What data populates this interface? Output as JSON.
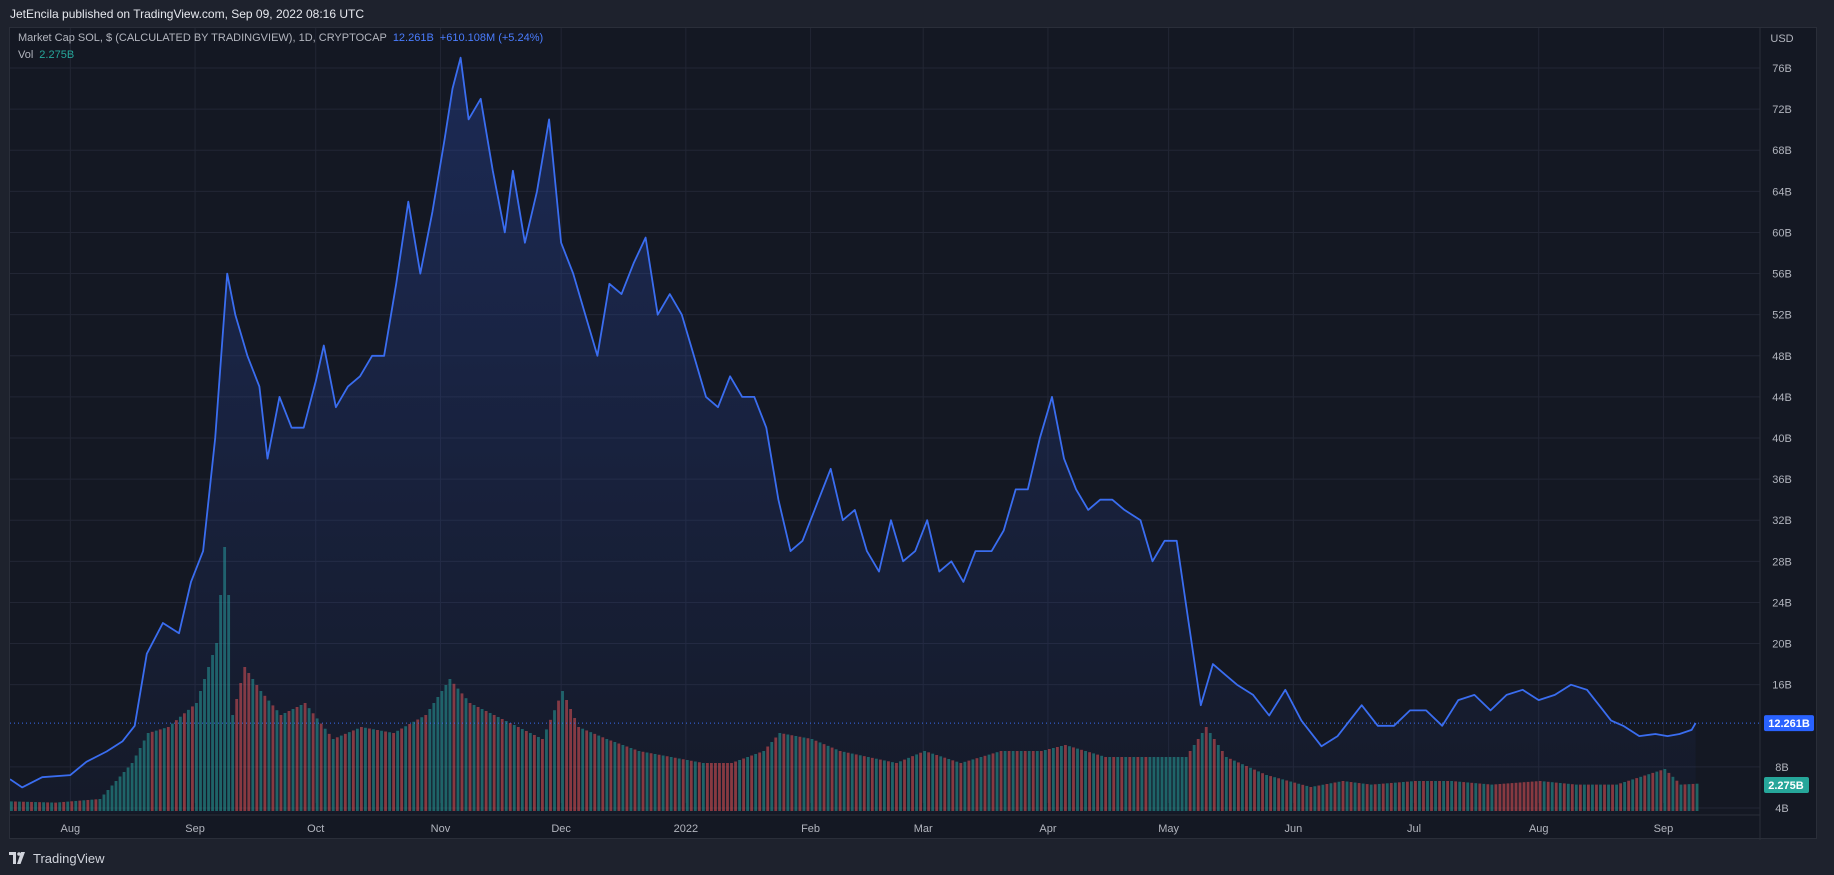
{
  "header": {
    "published_text": "JetEncila published on TradingView.com, Sep 09, 2022 08:16 UTC"
  },
  "legend": {
    "symbol_text": "Market Cap SOL, $ (CALCULATED BY TRADINGVIEW), 1D, CRYPTOCAP",
    "last_value": "12.261B",
    "change": "+610.108M (+5.24%)",
    "vol_label": "Vol",
    "vol_value": "2.275B"
  },
  "footer": {
    "brand": "TradingView"
  },
  "colors": {
    "line": "#3a6df0",
    "volume_up": "#26a69a",
    "volume_down": "#ef5350",
    "price_badge": "#2962ff",
    "volume_badge": "#26a69a"
  },
  "chart_data": {
    "type": "area",
    "title": "Market Cap SOL, $ (CALCULATED BY TRADINGVIEW), 1D, CRYPTOCAP",
    "currency_label": "USD",
    "y_axis_unit": "B",
    "ylim": [
      2,
      80
    ],
    "y_ticks": [
      4,
      8,
      16,
      20,
      24,
      28,
      32,
      36,
      40,
      44,
      48,
      52,
      56,
      60,
      64,
      68,
      72,
      76
    ],
    "x_tick_labels": [
      "Aug",
      "Sep",
      "Oct",
      "Nov",
      "Dec",
      "2022",
      "Feb",
      "Mar",
      "Apr",
      "May",
      "Jun",
      "Jul",
      "Aug",
      "Sep"
    ],
    "x_ticks": [
      "2021-08-01",
      "2021-09-01",
      "2021-10-01",
      "2021-11-01",
      "2021-12-01",
      "2022-01-01",
      "2022-02-01",
      "2022-03-01",
      "2022-04-01",
      "2022-05-01",
      "2022-06-01",
      "2022-07-01",
      "2022-08-01",
      "2022-09-01"
    ],
    "x_range": [
      "2021-07-17",
      "2022-09-25"
    ],
    "grid": true,
    "last_price_label": "12.261B",
    "last_volume_label": "2.275B",
    "series": [
      {
        "name": "Market Cap SOL",
        "x": [
          "2021-07-17",
          "2021-07-20",
          "2021-07-25",
          "2021-08-01",
          "2021-08-05",
          "2021-08-10",
          "2021-08-14",
          "2021-08-17",
          "2021-08-20",
          "2021-08-24",
          "2021-08-28",
          "2021-08-31",
          "2021-09-03",
          "2021-09-06",
          "2021-09-09",
          "2021-09-11",
          "2021-09-14",
          "2021-09-17",
          "2021-09-19",
          "2021-09-22",
          "2021-09-25",
          "2021-09-28",
          "2021-10-01",
          "2021-10-03",
          "2021-10-06",
          "2021-10-09",
          "2021-10-12",
          "2021-10-15",
          "2021-10-18",
          "2021-10-21",
          "2021-10-24",
          "2021-10-27",
          "2021-10-30",
          "2021-11-02",
          "2021-11-04",
          "2021-11-06",
          "2021-11-08",
          "2021-11-11",
          "2021-11-14",
          "2021-11-17",
          "2021-11-19",
          "2021-11-22",
          "2021-11-25",
          "2021-11-28",
          "2021-12-01",
          "2021-12-04",
          "2021-12-07",
          "2021-12-10",
          "2021-12-13",
          "2021-12-16",
          "2021-12-19",
          "2021-12-22",
          "2021-12-25",
          "2021-12-28",
          "2021-12-31",
          "2022-01-03",
          "2022-01-06",
          "2022-01-09",
          "2022-01-12",
          "2022-01-15",
          "2022-01-18",
          "2022-01-21",
          "2022-01-24",
          "2022-01-27",
          "2022-01-30",
          "2022-02-02",
          "2022-02-06",
          "2022-02-09",
          "2022-02-12",
          "2022-02-15",
          "2022-02-18",
          "2022-02-21",
          "2022-02-24",
          "2022-02-27",
          "2022-03-02",
          "2022-03-05",
          "2022-03-08",
          "2022-03-11",
          "2022-03-14",
          "2022-03-18",
          "2022-03-21",
          "2022-03-24",
          "2022-03-27",
          "2022-03-30",
          "2022-04-02",
          "2022-04-05",
          "2022-04-08",
          "2022-04-11",
          "2022-04-14",
          "2022-04-17",
          "2022-04-20",
          "2022-04-24",
          "2022-04-27",
          "2022-04-30",
          "2022-05-03",
          "2022-05-06",
          "2022-05-09",
          "2022-05-12",
          "2022-05-15",
          "2022-05-18",
          "2022-05-22",
          "2022-05-26",
          "2022-05-30",
          "2022-06-03",
          "2022-06-08",
          "2022-06-12",
          "2022-06-15",
          "2022-06-18",
          "2022-06-22",
          "2022-06-26",
          "2022-06-30",
          "2022-07-04",
          "2022-07-08",
          "2022-07-12",
          "2022-07-16",
          "2022-07-20",
          "2022-07-24",
          "2022-07-28",
          "2022-08-01",
          "2022-08-05",
          "2022-08-09",
          "2022-08-13",
          "2022-08-16",
          "2022-08-19",
          "2022-08-22",
          "2022-08-26",
          "2022-08-30",
          "2022-09-02",
          "2022-09-05",
          "2022-09-08",
          "2022-09-09"
        ],
        "values": [
          6.8,
          6.0,
          7.0,
          7.2,
          8.5,
          9.5,
          10.5,
          12.0,
          19.0,
          22.0,
          21.0,
          26.0,
          29.0,
          40.0,
          56.0,
          52.0,
          48.0,
          45.0,
          38.0,
          44.0,
          41.0,
          41.0,
          45.5,
          49.0,
          43.0,
          45.0,
          46.0,
          48.0,
          48.0,
          55.0,
          63.0,
          56.0,
          62.0,
          69.0,
          74.0,
          77.0,
          71.0,
          73.0,
          66.0,
          60.0,
          66.0,
          59.0,
          64.0,
          71.0,
          59.0,
          56.0,
          52.0,
          48.0,
          55.0,
          54.0,
          57.0,
          59.5,
          52.0,
          54.0,
          52.0,
          48.0,
          44.0,
          43.0,
          46.0,
          44.0,
          44.0,
          41.0,
          34.0,
          29.0,
          30.0,
          33.0,
          37.0,
          32.0,
          33.0,
          29.0,
          27.0,
          32.0,
          28.0,
          29.0,
          32.0,
          27.0,
          28.0,
          26.0,
          29.0,
          29.0,
          31.0,
          35.0,
          35.0,
          40.0,
          44.0,
          38.0,
          35.0,
          33.0,
          34.0,
          34.0,
          33.0,
          32.0,
          28.0,
          30.0,
          30.0,
          22.0,
          14.0,
          18.0,
          17.0,
          16.0,
          15.0,
          13.0,
          15.5,
          12.5,
          10.0,
          11.0,
          12.5,
          14.0,
          12.0,
          12.0,
          13.5,
          13.5,
          12.0,
          14.5,
          15.0,
          13.5,
          15.0,
          15.5,
          14.5,
          15.0,
          16.0,
          15.5,
          14.0,
          12.5,
          12.0,
          11.0,
          11.2,
          11.0,
          11.2,
          11.6,
          12.26
        ]
      }
    ],
    "volume": {
      "name": "Vol",
      "unit": "B",
      "ylim": [
        0,
        24
      ],
      "x": [
        "2021-07-17",
        "2021-07-28",
        "2021-08-08",
        "2021-08-16",
        "2021-08-20",
        "2021-08-25",
        "2021-09-01",
        "2021-09-06",
        "2021-09-08",
        "2021-09-09",
        "2021-09-10",
        "2021-09-13",
        "2021-09-17",
        "2021-09-22",
        "2021-09-28",
        "2021-10-05",
        "2021-10-12",
        "2021-10-20",
        "2021-10-28",
        "2021-11-03",
        "2021-11-08",
        "2021-11-14",
        "2021-11-20",
        "2021-11-26",
        "2021-12-01",
        "2021-12-05",
        "2021-12-12",
        "2021-12-20",
        "2021-12-28",
        "2022-01-05",
        "2022-01-12",
        "2022-01-20",
        "2022-01-24",
        "2022-02-01",
        "2022-02-08",
        "2022-02-15",
        "2022-02-22",
        "2022-03-01",
        "2022-03-10",
        "2022-03-20",
        "2022-03-30",
        "2022-04-05",
        "2022-04-15",
        "2022-04-25",
        "2022-05-05",
        "2022-05-10",
        "2022-05-15",
        "2022-05-25",
        "2022-06-05",
        "2022-06-13",
        "2022-06-20",
        "2022-07-01",
        "2022-07-10",
        "2022-07-20",
        "2022-08-01",
        "2022-08-10",
        "2022-08-20",
        "2022-09-01",
        "2022-09-05",
        "2022-09-09"
      ],
      "values": [
        0.8,
        0.7,
        1.0,
        4.0,
        6.5,
        7.0,
        9.0,
        14.0,
        22.0,
        18.0,
        8.0,
        12.0,
        10.0,
        8.0,
        9.0,
        6.0,
        7.0,
        6.5,
        8.0,
        11.0,
        9.0,
        8.0,
        7.0,
        6.0,
        10.0,
        7.0,
        6.0,
        5.0,
        4.5,
        4.0,
        4.0,
        5.0,
        6.5,
        6.0,
        5.0,
        4.5,
        4.0,
        5.0,
        4.0,
        5.0,
        5.0,
        5.5,
        4.5,
        4.5,
        4.5,
        7.0,
        4.5,
        3.0,
        2.0,
        2.5,
        2.2,
        2.5,
        2.5,
        2.2,
        2.5,
        2.2,
        2.2,
        3.5,
        2.2,
        2.275
      ],
      "up": [
        true,
        false,
        true,
        true,
        true,
        false,
        true,
        true,
        true,
        true,
        false,
        false,
        true,
        false,
        true,
        false,
        true,
        false,
        true,
        true,
        false,
        true,
        false,
        true,
        false,
        false,
        true,
        false,
        true,
        false,
        false,
        true,
        false,
        true,
        false,
        true,
        false,
        true,
        false,
        true,
        false,
        true,
        false,
        true,
        true,
        false,
        true,
        false,
        true,
        false,
        true,
        false,
        true,
        false,
        false,
        true,
        false,
        true,
        false,
        true
      ]
    }
  }
}
